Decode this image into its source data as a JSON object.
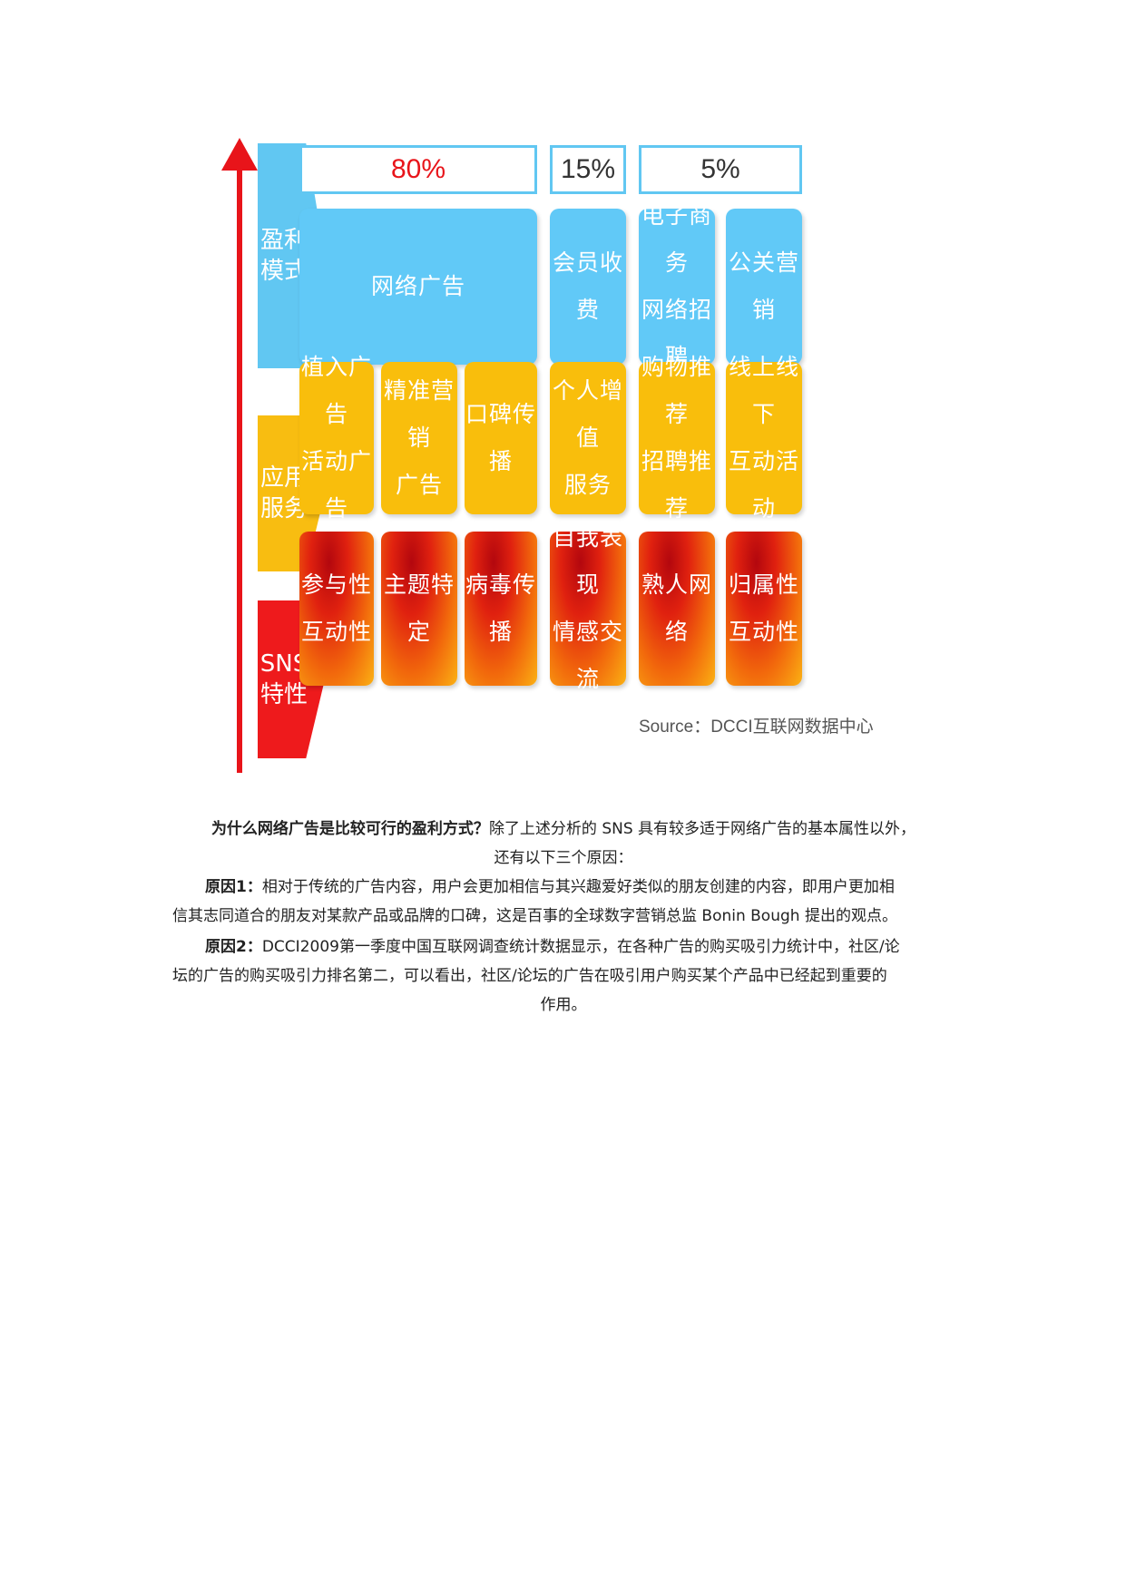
{
  "figure": {
    "row_labels": [
      "盈利\n模式",
      "应用\n服务",
      "SNS\n特性"
    ],
    "percentages": [
      "80%",
      "15%",
      "5%"
    ],
    "profit_tiles": [
      "网络广告",
      "会员收费",
      "电子商务\n网络招聘",
      "公关营销"
    ],
    "service_tiles": [
      "植入广告\n活动广告",
      "精准营销\n广告",
      "口碑传播",
      "个人增值\n服务",
      "购物推荐\n招聘推荐",
      "线上线下\n互动活动"
    ],
    "sns_tiles": [
      "参与性\n互动性",
      "主题特定",
      "病毒传播",
      "自我表现\n情感交流",
      "熟人网络",
      "归属性\n互动性"
    ],
    "source": "Source：DCCI互联网数据中心"
  },
  "text": {
    "q_bold": "为什么网络广告是比较可行的盈利方式？",
    "q_rest": "除了上述分析的 SNS 具有较多适于网络广告的基本属性以外，",
    "q_line2": "还有以下三个原因：",
    "r1_bold": "原因1：",
    "r1_line1": "相对于传统的广告内容，用户会更加相信与其兴趣爱好类似的朋友创建的内容，即用户更加相",
    "r1_line2": "信其志同道合的朋友对某款产品或品牌的口碑，这是百事的全球数字营销总监 Bonin Bough 提出的观点。",
    "r2_bold": "原因2：",
    "r2_line1": "DCCI2009第一季度中国互联网调查统计数据显示，在各种广告的购买吸引力统计中，社区/论",
    "r2_line2": "坛的广告的购买吸引力排名第二，可以看出，社区/论坛的广告在吸引用户购买某个产品中已经起到重要的",
    "r2_line3": "作用。"
  }
}
